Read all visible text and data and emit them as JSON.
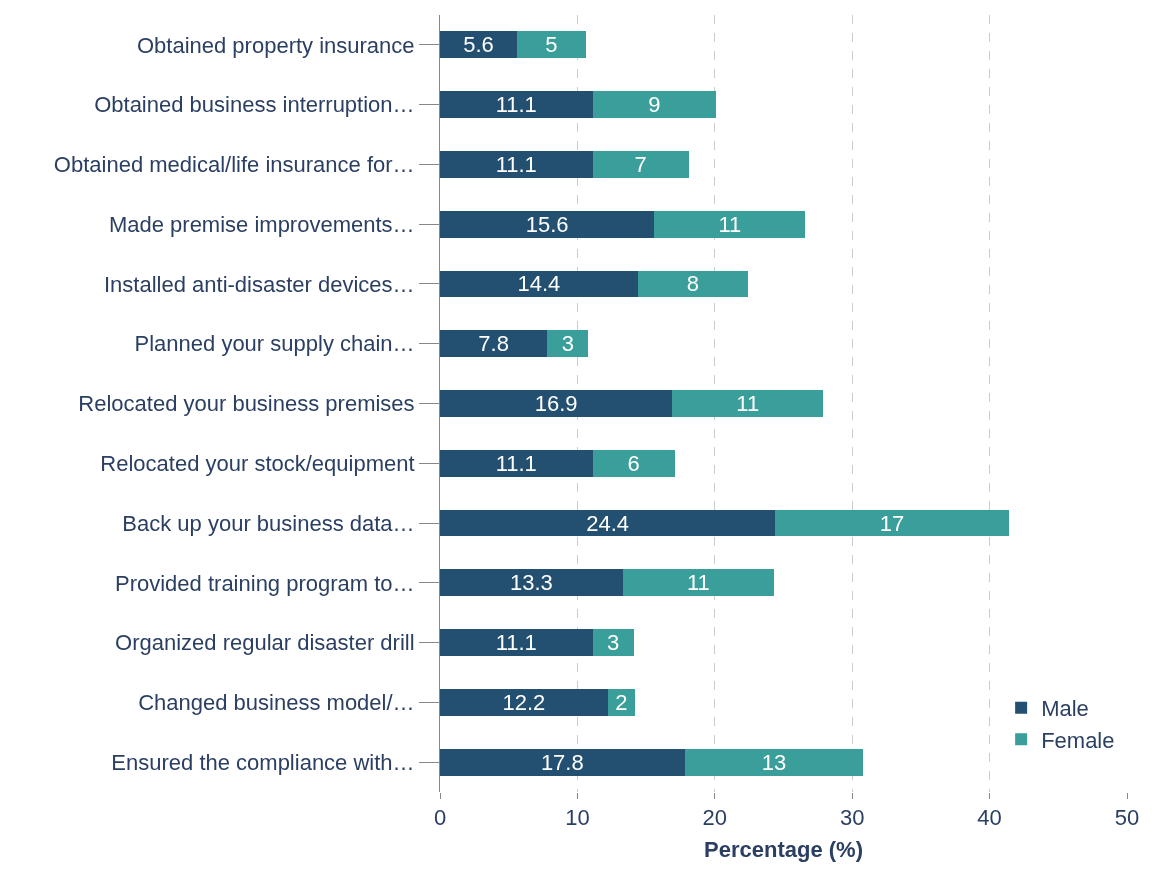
{
  "chart_data": {
    "type": "bar",
    "orientation": "horizontal",
    "stacked": true,
    "categories": [
      "Obtained property insurance",
      "Obtained business interruption…",
      "Obtained medical/life insurance for…",
      "Made premise improvements…",
      "Installed anti-disaster devices…",
      "Planned your supply chain…",
      "Relocated your business premises",
      "Relocated your stock/equipment",
      "Back up your business data…",
      "Provided training program to…",
      "Organized regular disaster drill",
      "Changed business model/…",
      "Ensured the compliance with…"
    ],
    "series": [
      {
        "name": "Male",
        "color": "#234f70",
        "values": [
          5.6,
          11.1,
          11.1,
          15.6,
          14.4,
          7.8,
          16.9,
          11.1,
          24.4,
          13.3,
          11.1,
          12.2,
          17.8
        ]
      },
      {
        "name": "Female",
        "color": "#3a9e9a",
        "values": [
          5,
          9,
          7,
          11,
          8,
          3,
          11,
          6,
          17,
          11,
          3,
          2,
          13
        ]
      }
    ],
    "xlabel": "Percentage (%)",
    "xlim": [
      0,
      50
    ],
    "xticks": [
      0,
      10,
      20,
      30,
      40,
      50
    ],
    "grid": "x",
    "legend": "bottom right",
    "data_labels": true
  }
}
